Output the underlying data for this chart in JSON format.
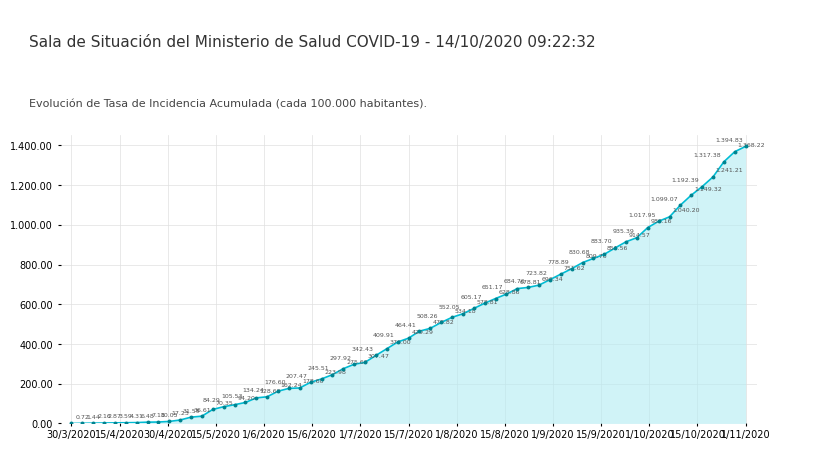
{
  "title": "Sala de Situación del Ministerio de Salud COVID-19 - 14/10/2020 09:22:32",
  "subtitle": "Evolución de Tasa de Incidencia Acumulada (cada 100.000 habitantes).",
  "bg_color_header": "#5ecfcf",
  "bg_color_chart": "#ffffff",
  "line_color": "#00bcd4",
  "fill_color": "#b2ebf2",
  "dot_color": "#00838f",
  "label_color": "#555555",
  "ylim": [
    0,
    1450
  ],
  "yticks": [
    0,
    200,
    400,
    600,
    800,
    1000,
    1200,
    1400
  ],
  "x_labels": [
    "30/3/2020",
    "15/4/2020",
    "30/4/2020",
    "15/5/2020",
    "1/6/2020",
    "15/6/2020",
    "1/7/2020",
    "15/7/2020",
    "1/8/2020",
    "15/8/2020",
    "1/9/2020",
    "15/9/2020",
    "1/10/2020",
    "15/10/2020",
    "1/11/2020"
  ],
  "values": [
    0.0,
    0.72,
    1.44,
    2.16,
    2.87,
    3.59,
    4.31,
    6.48,
    7.18,
    10.05,
    17.23,
    31.59,
    36.61,
    70.35,
    84.29,
    94.2,
    105.53,
    128.6,
    134.24,
    162.24,
    176.6,
    178.6,
    207.47,
    223.98,
    245.51,
    275.66,
    297.92,
    307.47,
    342.43,
    376.0,
    409.91,
    429.29,
    464.41,
    478.82,
    508.26,
    534.18,
    552.05,
    578.81,
    605.17,
    628.86,
    651.17,
    678.81,
    684.76,
    696.34,
    723.82,
    751.62,
    778.89,
    809.76,
    830.68,
    851.56,
    883.7,
    914.57,
    935.39,
    986.16,
    1017.95,
    1040.2,
    1099.07,
    1149.32,
    1192.39,
    1241.21,
    1317.38,
    1368.22,
    1394.83
  ],
  "grid_color": "#e0e0e0",
  "font_size_title": 11,
  "font_size_subtitle": 8,
  "font_size_ticks": 7,
  "font_size_labels": 6
}
